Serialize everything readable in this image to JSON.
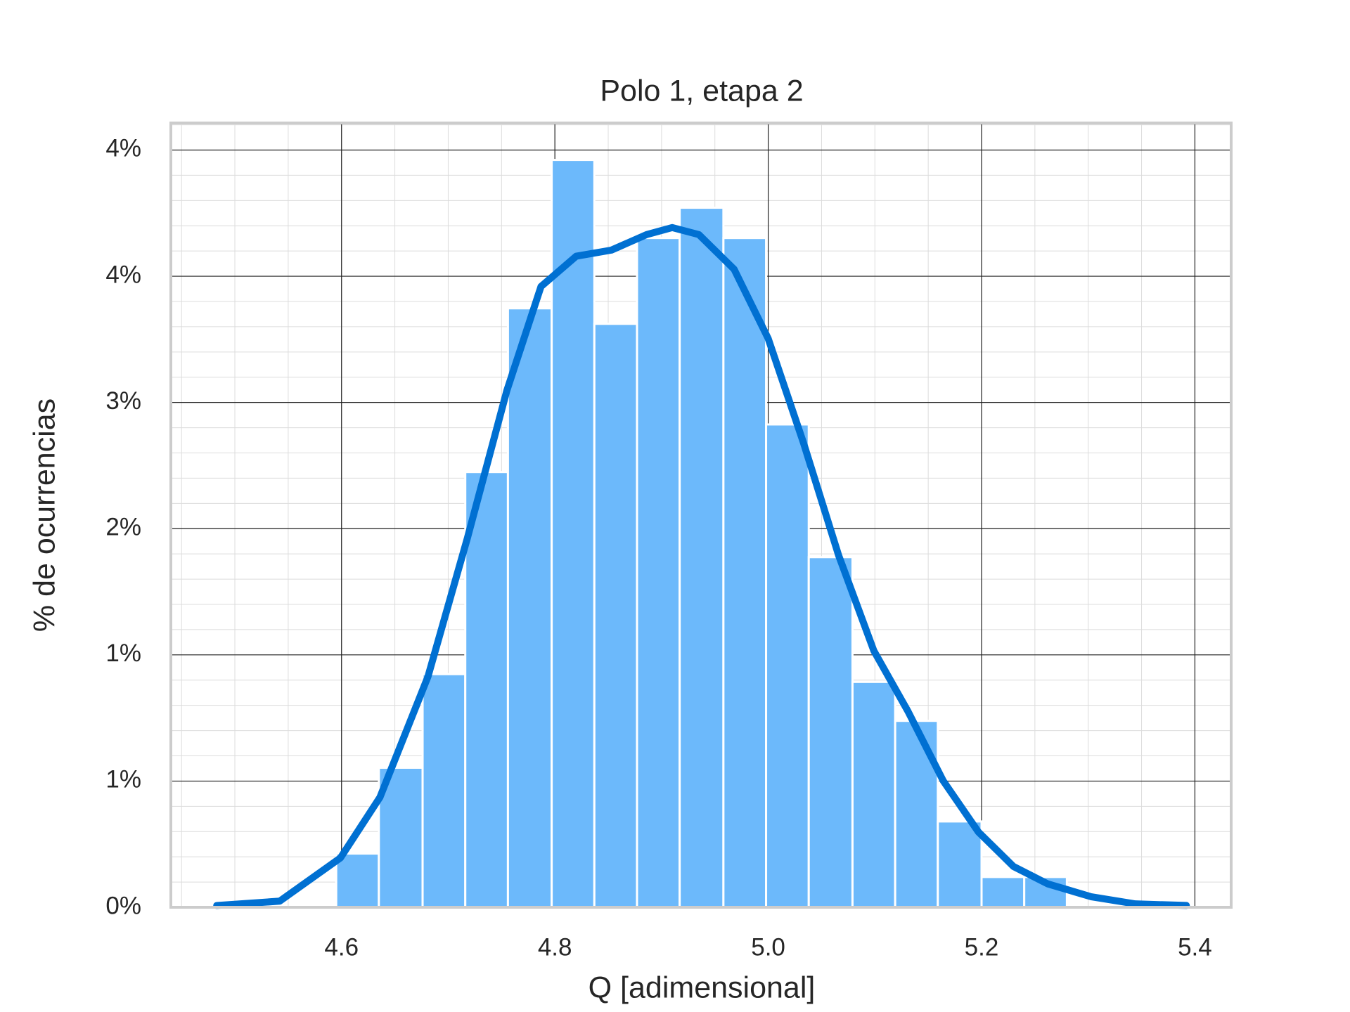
{
  "chart_data": {
    "type": "histogram",
    "title": "Polo 1, etapa 2",
    "x_label": "Q [adimensional]",
    "y_label": "% de ocurrencias",
    "bins": [
      4.595,
      4.635,
      4.676,
      4.716,
      4.756,
      4.797,
      4.837,
      4.877,
      4.917,
      4.958,
      4.998,
      5.038,
      5.079,
      5.119,
      5.159,
      5.2,
      5.24,
      5.28
    ],
    "values": [
      0.298,
      0.774,
      1.293,
      2.414,
      3.322,
      4.145,
      3.236,
      3.712,
      3.88,
      3.712,
      2.678,
      1.942,
      1.25,
      1.034,
      0.476,
      0.168,
      0.168
    ],
    "color": "#6cb9fb",
    "kde": {
      "color": "#0070d2",
      "x": [
        4.483,
        4.542,
        4.599,
        4.636,
        4.681,
        4.718,
        4.755,
        4.787,
        4.82,
        4.853,
        4.886,
        4.91,
        4.935,
        4.968,
        5.0,
        5.033,
        5.066,
        5.099,
        5.131,
        5.164,
        5.197,
        5.23,
        5.262,
        5.303,
        5.344,
        5.392
      ],
      "values": [
        0.01,
        0.034,
        0.274,
        0.61,
        1.279,
        2.048,
        2.866,
        3.443,
        3.611,
        3.645,
        3.731,
        3.77,
        3.731,
        3.539,
        3.154,
        2.577,
        1.952,
        1.423,
        1.087,
        0.702,
        0.418,
        0.226,
        0.13,
        0.058,
        0.019,
        0.01
      ]
    },
    "xlim": [
      4.44,
      5.434
    ],
    "ylim": [
      0,
      4.35
    ],
    "xticks": [
      4.6,
      4.8,
      {
        "value": 5.0,
        "label": "5.0"
      },
      5.2,
      5.4
    ],
    "yticks": [
      {
        "value": 0,
        "label": "0%"
      },
      {
        "value": 0.7,
        "label": "1%"
      },
      {
        "value": 1.4,
        "label": "1%"
      },
      {
        "value": 2.1,
        "label": "2%"
      },
      {
        "value": 2.8,
        "label": "3%"
      },
      {
        "value": 3.5,
        "label": "4%"
      },
      {
        "value": 4.2,
        "label": "4%"
      }
    ],
    "grid": true,
    "minor_grid": true
  }
}
